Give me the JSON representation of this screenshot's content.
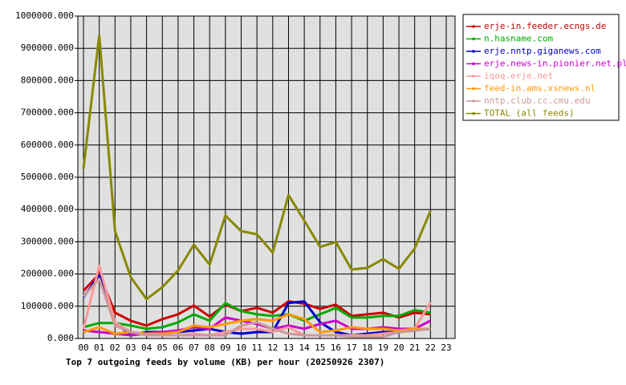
{
  "chart_data": {
    "type": "line",
    "title": "Top 7 outgoing feeds by volume (KB) per hour (20250926 2307)",
    "categories": [
      "00",
      "01",
      "02",
      "03",
      "04",
      "05",
      "06",
      "07",
      "08",
      "09",
      "10",
      "11",
      "12",
      "13",
      "14",
      "15",
      "16",
      "17",
      "18",
      "19",
      "20",
      "21",
      "22",
      "23"
    ],
    "ylim": [
      0,
      1000000
    ],
    "yticks": [
      {
        "value": 0,
        "label": "0.000"
      },
      {
        "value": 100000,
        "label": "100000.000"
      },
      {
        "value": 200000,
        "label": "200000.000"
      },
      {
        "value": 300000,
        "label": "300000.000"
      },
      {
        "value": 400000,
        "label": "400000.000"
      },
      {
        "value": 500000,
        "label": "500000.000"
      },
      {
        "value": 600000,
        "label": "600000.000"
      },
      {
        "value": 700000,
        "label": "700000.000"
      },
      {
        "value": 800000,
        "label": "800000.000"
      },
      {
        "value": 900000,
        "label": "900000.000"
      },
      {
        "value": 1000000,
        "label": "1000000.000"
      }
    ],
    "grid": true,
    "legend": "right",
    "series": [
      {
        "name": "erje-in.feeder.ecngs.de",
        "color": "#cc0000",
        "values": [
          148000,
          200000,
          80000,
          55000,
          40000,
          60000,
          75000,
          102000,
          68000,
          105000,
          85000,
          95000,
          80000,
          115000,
          108000,
          92000,
          105000,
          70000,
          75000,
          80000,
          65000,
          80000,
          75000,
          null
        ]
      },
      {
        "name": "n.hasname.com",
        "color": "#00aa00",
        "values": [
          35000,
          48000,
          48000,
          40000,
          30000,
          35000,
          50000,
          75000,
          55000,
          110000,
          85000,
          75000,
          70000,
          75000,
          55000,
          75000,
          95000,
          65000,
          65000,
          70000,
          70000,
          88000,
          80000,
          null
        ]
      },
      {
        "name": "erje.nntp.giganews.com",
        "color": "#0000cc",
        "values": [
          128000,
          195000,
          50000,
          10000,
          20000,
          20000,
          20000,
          25000,
          30000,
          20000,
          15000,
          20000,
          20000,
          110000,
          115000,
          50000,
          20000,
          10000,
          15000,
          20000,
          20000,
          25000,
          30000,
          null
        ]
      },
      {
        "name": "erje.news-in.pionier.net.pl",
        "color": "#cc00cc",
        "values": [
          25000,
          20000,
          15000,
          10000,
          15000,
          20000,
          25000,
          35000,
          30000,
          65000,
          55000,
          45000,
          30000,
          40000,
          30000,
          45000,
          55000,
          30000,
          30000,
          35000,
          30000,
          30000,
          55000,
          null
        ]
      },
      {
        "name": "iqoq.erje.net",
        "color": "#ff9999",
        "values": [
          30000,
          225000,
          50000,
          20000,
          10000,
          10000,
          10000,
          15000,
          10000,
          20000,
          30000,
          30000,
          20000,
          35000,
          10000,
          10000,
          10000,
          10000,
          10000,
          15000,
          20000,
          30000,
          112000,
          null
        ]
      },
      {
        "name": "feed-in.ams.xsnews.nl",
        "color": "#ff9900",
        "values": [
          20000,
          35000,
          15000,
          20000,
          15000,
          15000,
          20000,
          40000,
          35000,
          45000,
          55000,
          60000,
          55000,
          75000,
          60000,
          20000,
          25000,
          35000,
          30000,
          30000,
          25000,
          30000,
          30000,
          null
        ]
      },
      {
        "name": "nntp.club.cc.cmu.edu",
        "color": "#cc9999",
        "values": [
          130000,
          185000,
          40000,
          20000,
          10000,
          10000,
          10000,
          10000,
          10000,
          10000,
          40000,
          50000,
          30000,
          15000,
          10000,
          10000,
          10000,
          5000,
          5000,
          5000,
          20000,
          25000,
          30000,
          null
        ]
      },
      {
        "name": "TOTAL (all feeds)",
        "color": "#888800",
        "values": [
          527000,
          940000,
          333000,
          190000,
          122000,
          159000,
          211000,
          291000,
          229000,
          381000,
          333000,
          323000,
          266000,
          445000,
          366000,
          284000,
          299000,
          214000,
          219000,
          246000,
          216000,
          279000,
          396000,
          null
        ]
      }
    ]
  }
}
